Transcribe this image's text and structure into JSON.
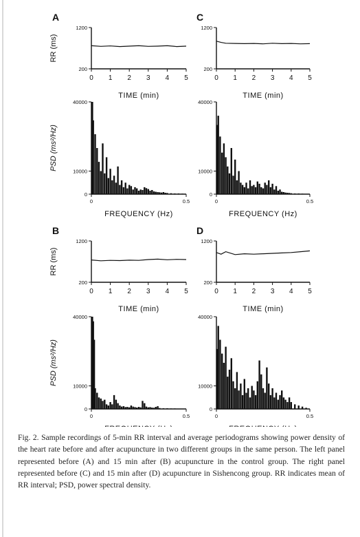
{
  "caption": "Fig. 2. Sample recordings of 5-min RR interval and average periodograms showing power density of the heart rate before and after acupuncture in two different groups in the same person. The left panel represented before (A) and 15 min after (B) acupuncture in the control group. The right panel represented before (C) and 15 min after (D) acupuncture in Sishencong group. RR indicates mean of RR interval; PSD, power spectral density.",
  "colors": {
    "ink": "#111111",
    "background": "#ffffff"
  },
  "chart_data": [
    {
      "id": "A-rr",
      "panel_letter": "A",
      "type": "line",
      "xlabel": "TIME (min)",
      "ylabel": "RR (ms)",
      "xlim": [
        0,
        5
      ],
      "ylim": [
        200,
        1200
      ],
      "xticks": [
        "0",
        "1",
        "2",
        "3",
        "4",
        "5"
      ],
      "yticks": [
        "200",
        "1200"
      ],
      "series": [
        {
          "x": [
            0,
            0.5,
            1,
            1.5,
            2,
            2.5,
            3,
            3.5,
            4,
            4.5,
            5
          ],
          "values": [
            760,
            745,
            755,
            740,
            750,
            760,
            745,
            750,
            760,
            740,
            750
          ]
        }
      ]
    },
    {
      "id": "A-psd",
      "panel_letter": "",
      "type": "bar",
      "xlabel": "FREQUENCY (Hz)",
      "ylabel": "PSD (ms²/Hz)",
      "xlim": [
        0,
        0.5
      ],
      "ylim": [
        0,
        40000
      ],
      "xticks": [
        "0",
        "0.5"
      ],
      "yticks": [
        "0",
        "10000",
        "40000"
      ],
      "x": [
        0.005,
        0.01,
        0.02,
        0.03,
        0.04,
        0.05,
        0.06,
        0.07,
        0.08,
        0.09,
        0.1,
        0.11,
        0.12,
        0.13,
        0.14,
        0.15,
        0.16,
        0.17,
        0.18,
        0.19,
        0.2,
        0.21,
        0.22,
        0.23,
        0.24,
        0.25,
        0.26,
        0.27,
        0.28,
        0.29,
        0.3,
        0.31,
        0.32,
        0.33,
        0.34,
        0.35,
        0.36,
        0.37,
        0.38,
        0.39,
        0.4,
        0.42,
        0.44,
        0.46,
        0.48
      ],
      "values": [
        40000,
        32000,
        26000,
        20000,
        14000,
        10000,
        22000,
        9000,
        16000,
        7000,
        11000,
        6000,
        8000,
        5000,
        12000,
        4000,
        6000,
        3000,
        5000,
        2500,
        4000,
        3500,
        2000,
        3000,
        2500,
        1500,
        2000,
        1800,
        3000,
        2600,
        2200,
        1500,
        1800,
        1200,
        1000,
        900,
        800,
        700,
        900,
        600,
        500,
        400,
        300,
        300,
        200
      ]
    },
    {
      "id": "C-rr",
      "panel_letter": "C",
      "type": "line",
      "xlabel": "TIME (min)",
      "ylabel": "",
      "xlim": [
        0,
        5
      ],
      "ylim": [
        200,
        1200
      ],
      "xticks": [
        "0",
        "1",
        "2",
        "3",
        "4",
        "5"
      ],
      "yticks": [
        "200",
        "1200"
      ],
      "series": [
        {
          "x": [
            0,
            0.25,
            0.5,
            1,
            1.5,
            2,
            2.5,
            3,
            3.5,
            4,
            4.5,
            5
          ],
          "values": [
            870,
            840,
            820,
            815,
            810,
            815,
            805,
            820,
            810,
            815,
            805,
            810
          ]
        }
      ]
    },
    {
      "id": "C-psd",
      "panel_letter": "",
      "type": "bar",
      "xlabel": "FREQUENCY (Hz)",
      "ylabel": "",
      "xlim": [
        0,
        0.5
      ],
      "ylim": [
        0,
        40000
      ],
      "xticks": [
        "0",
        "0.5"
      ],
      "yticks": [
        "0",
        "10000",
        "40000"
      ],
      "x": [
        0.005,
        0.01,
        0.02,
        0.03,
        0.04,
        0.05,
        0.06,
        0.07,
        0.08,
        0.09,
        0.1,
        0.11,
        0.12,
        0.13,
        0.14,
        0.15,
        0.16,
        0.17,
        0.18,
        0.19,
        0.2,
        0.21,
        0.22,
        0.23,
        0.24,
        0.25,
        0.26,
        0.27,
        0.28,
        0.29,
        0.3,
        0.31,
        0.32,
        0.33,
        0.34,
        0.35,
        0.36,
        0.37,
        0.38,
        0.39,
        0.4,
        0.42,
        0.44,
        0.46,
        0.48
      ],
      "values": [
        30000,
        34000,
        25000,
        18000,
        22000,
        16000,
        12000,
        9000,
        20000,
        8000,
        15000,
        6000,
        10000,
        5000,
        4000,
        3000,
        5000,
        2500,
        6000,
        3500,
        4000,
        3000,
        5500,
        4500,
        3000,
        2500,
        5000,
        4000,
        6000,
        3000,
        4500,
        2000,
        3500,
        1500,
        2000,
        1000,
        900,
        700,
        600,
        500,
        400,
        300,
        300,
        200,
        150
      ]
    },
    {
      "id": "B-rr",
      "panel_letter": "B",
      "type": "line",
      "xlabel": "TIME (min)",
      "ylabel": "RR (ms)",
      "xlim": [
        0,
        5
      ],
      "ylim": [
        200,
        1200
      ],
      "xticks": [
        "0",
        "1",
        "2",
        "3",
        "4",
        "5"
      ],
      "yticks": [
        "200",
        "1200"
      ],
      "series": [
        {
          "x": [
            0,
            0.5,
            1,
            1.5,
            2,
            2.5,
            3,
            3.5,
            4,
            4.5,
            5
          ],
          "values": [
            740,
            720,
            730,
            725,
            735,
            730,
            750,
            760,
            745,
            755,
            750
          ]
        }
      ]
    },
    {
      "id": "B-psd",
      "panel_letter": "",
      "type": "bar",
      "xlabel": "FREQUENCY (Hz)",
      "ylabel": "PSD (ms²/Hz)",
      "xlim": [
        0,
        0.5
      ],
      "ylim": [
        0,
        40000
      ],
      "xticks": [
        "0",
        "0.5"
      ],
      "yticks": [
        "0",
        "10000",
        "40000"
      ],
      "x": [
        0.005,
        0.01,
        0.015,
        0.02,
        0.03,
        0.04,
        0.05,
        0.06,
        0.07,
        0.08,
        0.09,
        0.1,
        0.11,
        0.12,
        0.13,
        0.14,
        0.15,
        0.16,
        0.17,
        0.18,
        0.19,
        0.2,
        0.21,
        0.22,
        0.23,
        0.24,
        0.25,
        0.26,
        0.27,
        0.28,
        0.29,
        0.3,
        0.31,
        0.32,
        0.33,
        0.34,
        0.35,
        0.36,
        0.38,
        0.4,
        0.42,
        0.44,
        0.46,
        0.48
      ],
      "values": [
        40000,
        38000,
        30000,
        9000,
        7000,
        5000,
        4500,
        3500,
        4000,
        2000,
        1500,
        3000,
        2000,
        6000,
        4000,
        2500,
        1500,
        1000,
        1200,
        800,
        900,
        700,
        1500,
        1000,
        800,
        600,
        900,
        700,
        3500,
        2500,
        1000,
        700,
        800,
        600,
        500,
        900,
        1200,
        400,
        300,
        300,
        200,
        200,
        150,
        100
      ]
    },
    {
      "id": "D-rr",
      "panel_letter": "D",
      "type": "line",
      "xlabel": "TIME (min)",
      "ylabel": "",
      "xlim": [
        0,
        5
      ],
      "ylim": [
        200,
        1200
      ],
      "xticks": [
        "0",
        "1",
        "2",
        "3",
        "4",
        "5"
      ],
      "yticks": [
        "200",
        "1200"
      ],
      "series": [
        {
          "x": [
            0,
            0.25,
            0.5,
            1,
            1.5,
            2,
            2.5,
            3,
            3.5,
            4,
            4.5,
            5
          ],
          "values": [
            920,
            880,
            940,
            870,
            890,
            880,
            890,
            900,
            910,
            920,
            940,
            960
          ]
        }
      ]
    },
    {
      "id": "D-psd",
      "panel_letter": "",
      "type": "bar",
      "xlabel": "FREQUENCY (Hz)",
      "ylabel": "",
      "xlim": [
        0,
        0.5
      ],
      "ylim": [
        0,
        40000
      ],
      "xticks": [
        "0",
        "0.5"
      ],
      "yticks": [
        "0",
        "10000",
        "40000"
      ],
      "x": [
        0.005,
        0.01,
        0.02,
        0.03,
        0.04,
        0.05,
        0.06,
        0.07,
        0.08,
        0.09,
        0.1,
        0.11,
        0.12,
        0.13,
        0.14,
        0.15,
        0.16,
        0.17,
        0.18,
        0.19,
        0.2,
        0.21,
        0.22,
        0.23,
        0.24,
        0.25,
        0.26,
        0.27,
        0.28,
        0.29,
        0.3,
        0.31,
        0.32,
        0.33,
        0.34,
        0.35,
        0.36,
        0.37,
        0.38,
        0.39,
        0.4,
        0.42,
        0.44,
        0.46,
        0.48
      ],
      "values": [
        26000,
        36000,
        30000,
        24000,
        20000,
        27000,
        14000,
        17000,
        22000,
        12000,
        9000,
        16000,
        8000,
        11000,
        6000,
        13000,
        7000,
        9000,
        5000,
        10000,
        8000,
        6000,
        12000,
        21000,
        15000,
        9000,
        7000,
        18000,
        11000,
        6000,
        9000,
        5000,
        7000,
        4000,
        6000,
        8000,
        5000,
        4000,
        3000,
        5000,
        3000,
        2000,
        1500,
        1000,
        500
      ]
    }
  ]
}
